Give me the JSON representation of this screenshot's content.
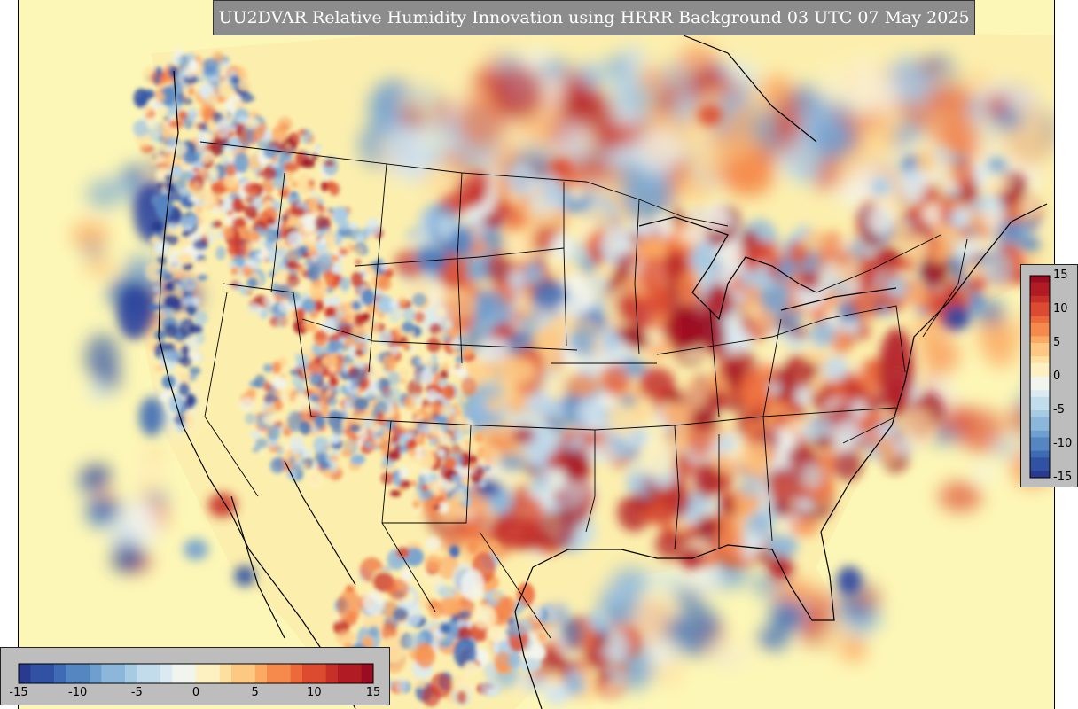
{
  "title": "UU2DVAR Relative Humidity Innovation using HRRR Background 03 UTC 07 May 2025",
  "colors": {
    "background": "#fdf7b7",
    "negative_strong": "#2b3f94",
    "negative_mid": "#5a86c2",
    "negative_weak": "#bcd8ea",
    "neutral": "#f7f7f7",
    "positive_weak": "#fcd083",
    "positive_mid": "#e8622e",
    "positive_strong": "#9e0e20",
    "boundaries": "#000000"
  },
  "colorbar": {
    "min": -15,
    "max": 15,
    "horizontal_ticks": [
      "-15",
      "-10",
      "-5",
      "0",
      "5",
      "10",
      "15"
    ],
    "vertical_ticks": [
      "15",
      "10",
      "5",
      "0",
      "-5",
      "-10",
      "-15"
    ]
  }
}
